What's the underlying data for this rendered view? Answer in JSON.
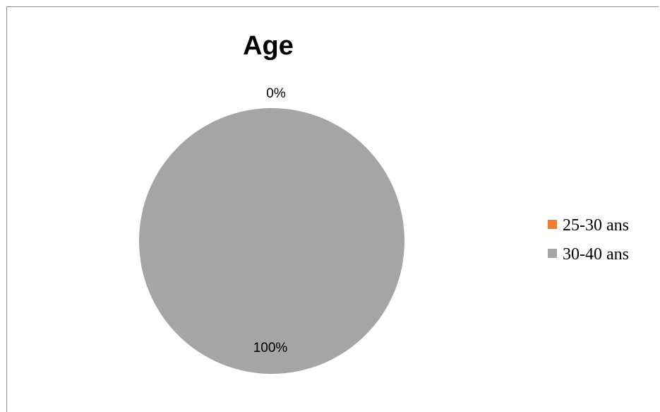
{
  "chart_data": {
    "type": "pie",
    "title": "Age",
    "categories": [
      "25-30 ans",
      "30-40 ans"
    ],
    "values": [
      0,
      100
    ],
    "data_labels": [
      "0%",
      "100%"
    ],
    "colors": [
      "#ED7D31",
      "#A5A5A5"
    ],
    "legend": {
      "placement": "right",
      "entries": [
        "25-30 ans",
        "30-40 ans"
      ]
    },
    "start_angle_deg": 0,
    "direction": "clockwise"
  }
}
